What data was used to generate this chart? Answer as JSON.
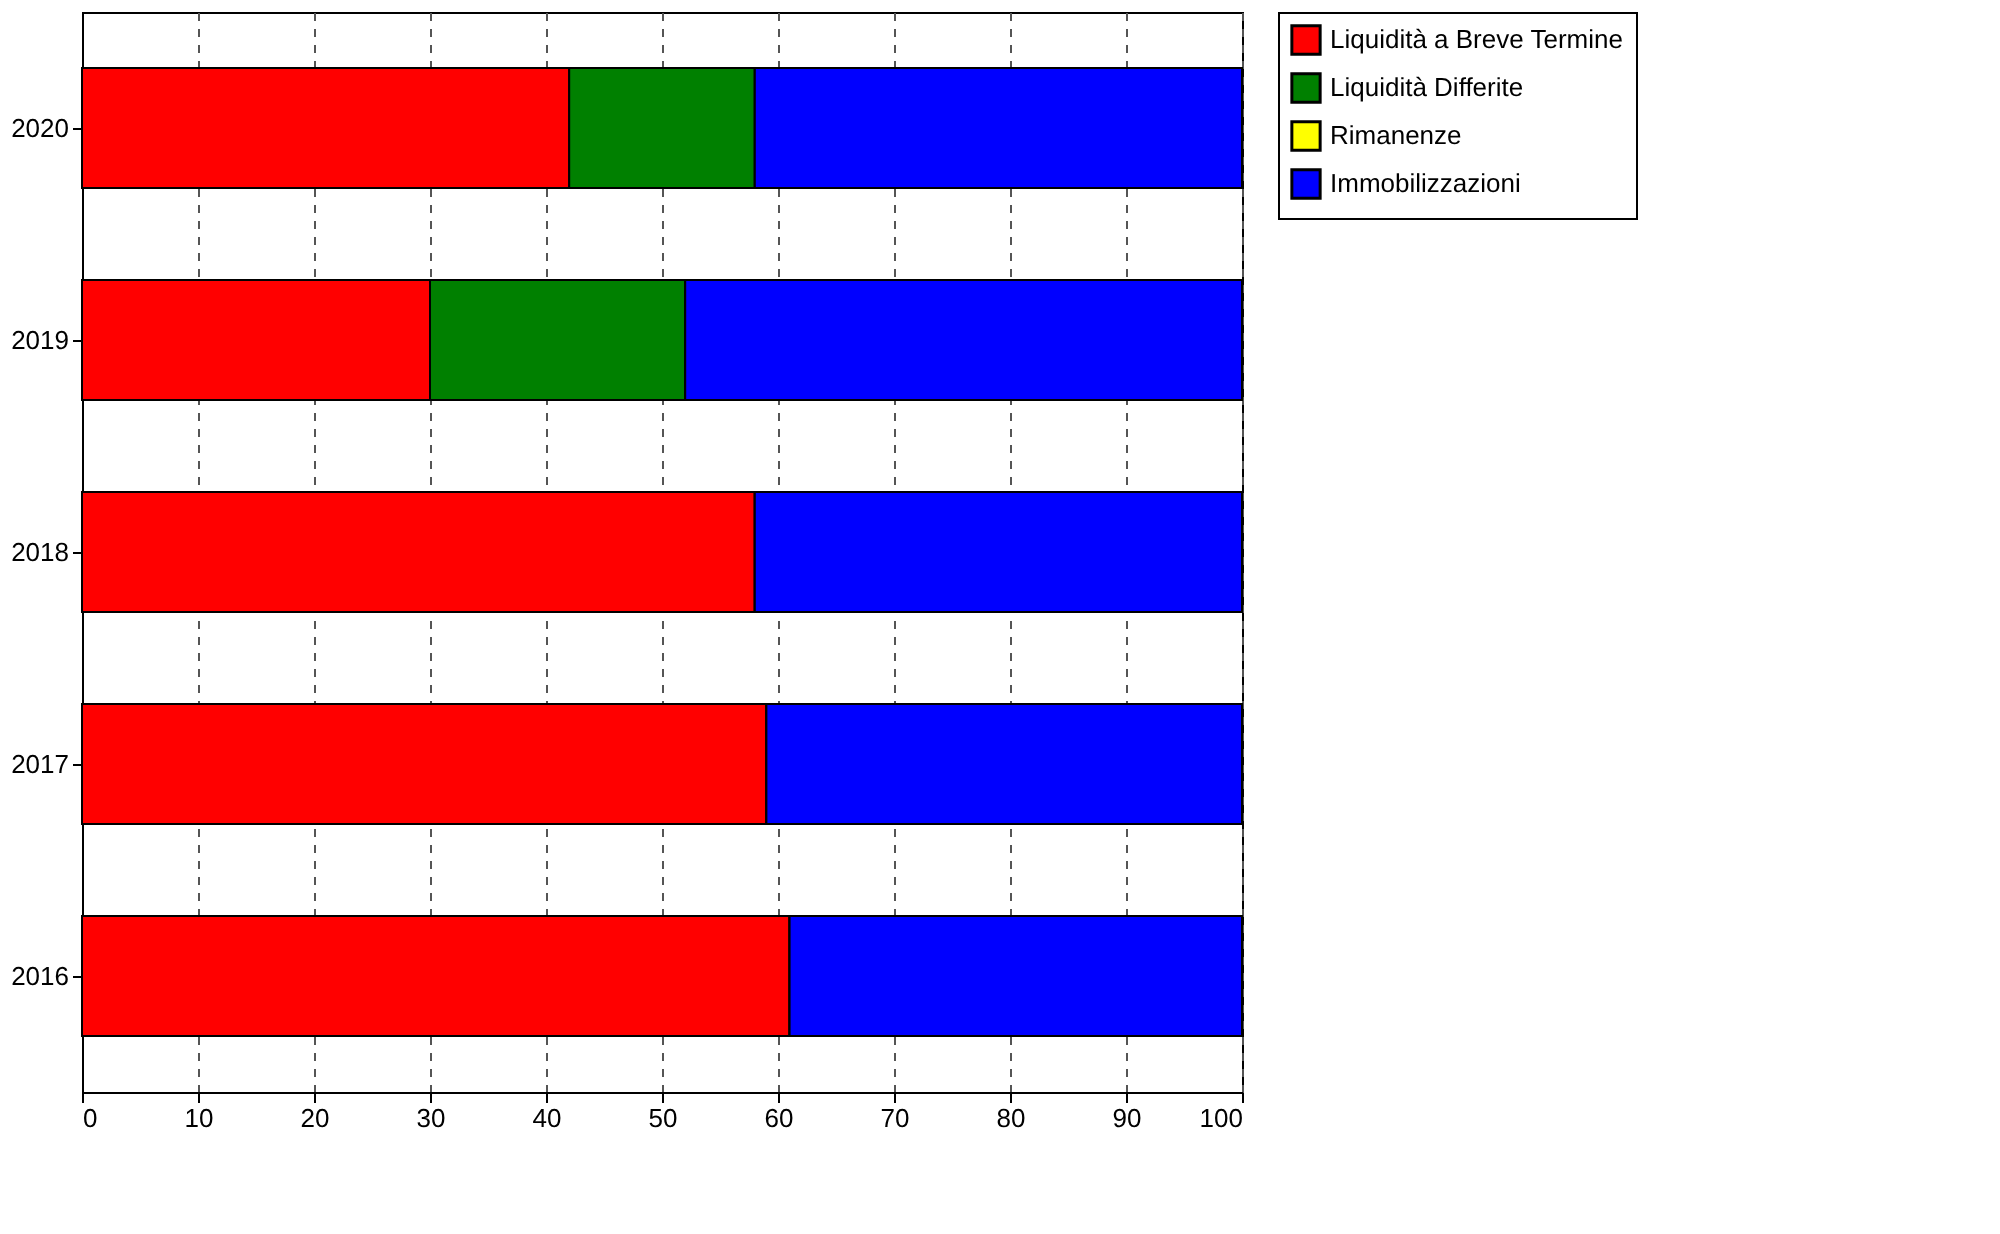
{
  "chart_data": {
    "type": "bar",
    "orientation": "horizontal",
    "stacked": true,
    "categories": [
      "2020",
      "2019",
      "2018",
      "2017",
      "2016"
    ],
    "series": [
      {
        "name": "Liquidità a Breve Termine",
        "color": "#ff0000",
        "values": [
          42,
          30,
          58,
          59,
          61
        ]
      },
      {
        "name": "Liquidità Differite",
        "color": "#008000",
        "values": [
          16,
          22,
          0,
          0,
          0
        ]
      },
      {
        "name": "Rimanenze",
        "color": "#ffff00",
        "values": [
          0,
          0,
          0,
          0,
          0
        ]
      },
      {
        "name": "Immobilizzazioni",
        "color": "#0000ff",
        "values": [
          42,
          48,
          42,
          41,
          39
        ]
      }
    ],
    "xlim": [
      0,
      100
    ],
    "xticks": [
      0,
      10,
      20,
      30,
      40,
      50,
      60,
      70,
      80,
      90,
      100
    ],
    "grid": "x",
    "legend": "top right"
  }
}
